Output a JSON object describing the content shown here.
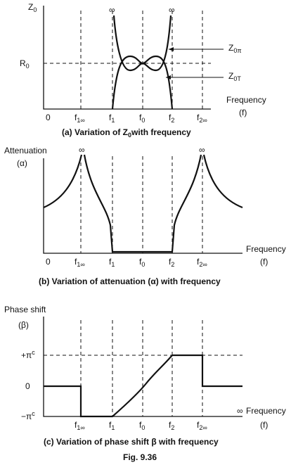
{
  "panel_a": {
    "y_label": {
      "main": "Z",
      "sub": "0"
    },
    "r_label": {
      "main": "R",
      "sub": "0"
    },
    "infinity": [
      "∞",
      "∞"
    ],
    "curve_labels": [
      {
        "main": "Z",
        "sub": "0π"
      },
      {
        "main": "Z",
        "sub": "0T"
      }
    ],
    "x_label": "Frequency",
    "x_unit": "(f)",
    "x_ticks": [
      "0",
      {
        "main": "f",
        "sub": "1∞"
      },
      {
        "main": "f",
        "sub": "1"
      },
      {
        "main": "f",
        "sub": "0"
      },
      {
        "main": "f",
        "sub": "2"
      },
      {
        "main": "f",
        "sub": "2∞"
      }
    ],
    "caption": {
      "before": "(a) Variation of Z",
      "sub": "0",
      "after": "with frequency"
    }
  },
  "panel_b": {
    "y_label": "Attenuation",
    "y_symbol": "(α)",
    "infinity": [
      "∞",
      "∞"
    ],
    "x_label": "Frequency",
    "x_unit": "(f)",
    "x_ticks": [
      "0",
      {
        "main": "f",
        "sub": "1∞"
      },
      {
        "main": "f",
        "sub": "1"
      },
      {
        "main": "f",
        "sub": "0"
      },
      {
        "main": "f",
        "sub": "2"
      },
      {
        "main": "f",
        "sub": "2∞"
      }
    ],
    "caption": "(b) Variation of attenuation (α) with frequency"
  },
  "panel_c": {
    "y_label": "Phase shift",
    "y_symbol": "(β)",
    "levels": [
      {
        "main": "+π",
        "sup": "c"
      },
      "0",
      {
        "main": "−π",
        "sup": "c"
      }
    ],
    "infinity": "∞",
    "x_label": "Frequency",
    "x_unit": "(f)",
    "x_ticks": [
      {
        "main": "f",
        "sub": "1∞"
      },
      {
        "main": "f",
        "sub": "1"
      },
      {
        "main": "f",
        "sub": "0"
      },
      {
        "main": "f",
        "sub": "2"
      },
      {
        "main": "f",
        "sub": "2∞"
      }
    ],
    "caption": "(c) Variation of phase shift β with frequency"
  },
  "figure_label": "Fig. 9.36"
}
